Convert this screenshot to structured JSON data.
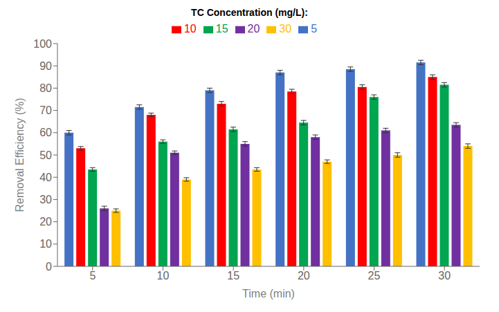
{
  "chart_data": {
    "type": "bar",
    "title": "TC Concentration (mg/L):",
    "xlabel": "Time (min)",
    "ylabel": "Removal Efficiency (%)",
    "categories": [
      "5",
      "10",
      "15",
      "20",
      "25",
      "30"
    ],
    "series": [
      {
        "name": "5",
        "color": "#4472C4",
        "values": [
          60.0,
          71.5,
          79.0,
          87.0,
          88.5,
          91.5
        ],
        "errors": [
          1.0,
          1.0,
          1.0,
          1.0,
          1.0,
          1.0
        ]
      },
      {
        "name": "10",
        "color": "#FF0000",
        "values": [
          53.0,
          68.0,
          73.0,
          78.5,
          80.5,
          85.0
        ],
        "errors": [
          0.8,
          0.8,
          1.0,
          1.0,
          1.0,
          1.0
        ]
      },
      {
        "name": "15",
        "color": "#00A550",
        "values": [
          43.5,
          56.0,
          61.5,
          64.5,
          76.0,
          81.5
        ],
        "errors": [
          0.8,
          0.8,
          1.0,
          1.0,
          1.0,
          1.0
        ]
      },
      {
        "name": "20",
        "color": "#7030A0",
        "values": [
          26.0,
          51.0,
          55.0,
          58.0,
          61.0,
          63.5
        ],
        "errors": [
          1.0,
          0.8,
          1.0,
          1.0,
          1.0,
          1.0
        ]
      },
      {
        "name": "30",
        "color": "#FFC000",
        "values": [
          25.0,
          39.0,
          43.5,
          47.0,
          50.0,
          54.0
        ],
        "errors": [
          0.8,
          0.8,
          0.8,
          0.8,
          1.0,
          1.0
        ]
      }
    ],
    "ylim": [
      0,
      100
    ],
    "yticks": [
      0,
      10,
      20,
      30,
      40,
      50,
      60,
      70,
      80,
      90,
      100
    ],
    "grid": false,
    "legend": "top"
  }
}
